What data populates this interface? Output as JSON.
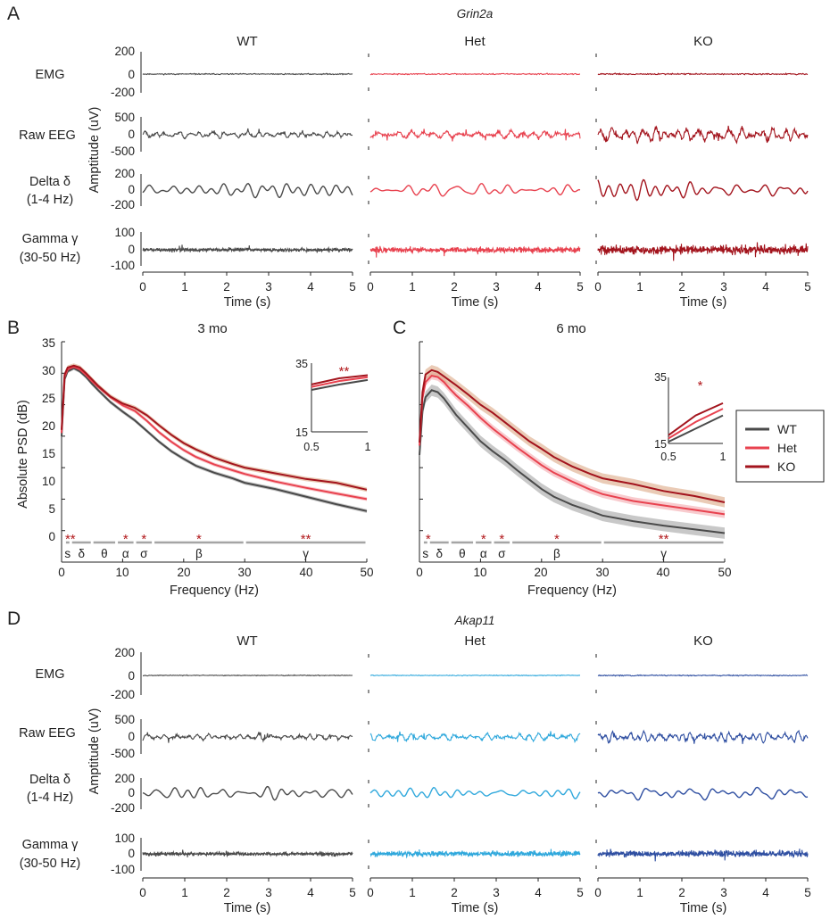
{
  "panel_labels": {
    "A": "A",
    "B": "B",
    "C": "C",
    "D": "D"
  },
  "genes": {
    "top": "Grin2a",
    "bottom": "Akap11"
  },
  "genotypes": [
    "WT",
    "Het",
    "KO"
  ],
  "row_labels": [
    {
      "l1": "EMG",
      "l2": ""
    },
    {
      "l1": "Raw EEG",
      "l2": ""
    },
    {
      "l1": "Delta δ",
      "l2": "(1-4 Hz)"
    },
    {
      "l1": "Gamma γ",
      "l2": "(30-50 Hz)"
    }
  ],
  "trace_ylabel": "Amptitude (uV)",
  "time_xlabel": "Time (s)",
  "psd_xlabel": "Frequency (Hz)",
  "psd_ylabel": "Absolute PSD (dB)",
  "colors": {
    "grin2a": {
      "WT": "#4a4a4a",
      "Het": "#e8424f",
      "KO": "#a3141d"
    },
    "akap11": {
      "WT": "#4a4a4a",
      "Het": "#2fa8dc",
      "KO": "#2e4ea1"
    },
    "psd": {
      "WT": "#4a4a4a",
      "Het": "#e8424f",
      "KO": "#a3141d"
    },
    "star": "#b2191c",
    "band_bar": "#a5a5a5"
  },
  "legend": [
    "WT",
    "Het",
    "KO"
  ],
  "chart_data": [
    {
      "id": "A",
      "type": "line",
      "title": "Grin2a",
      "columns": [
        "WT",
        "Het",
        "KO"
      ],
      "rows": [
        {
          "label": "EMG",
          "ylim": [
            -200,
            200
          ],
          "yticks": [
            200,
            0,
            -200
          ],
          "amplitude": [
            8,
            8,
            8
          ]
        },
        {
          "label": "Raw EEG",
          "ylim": [
            -500,
            500
          ],
          "yticks": [
            500,
            0,
            -500
          ],
          "amplitude": [
            180,
            190,
            260
          ]
        },
        {
          "label": "Delta δ (1-4 Hz)",
          "ylim": [
            -250,
            250
          ],
          "yticks": [
            200,
            0,
            -200
          ],
          "amplitude": [
            120,
            100,
            160
          ]
        },
        {
          "label": "Gamma γ (30-50 Hz)",
          "ylim": [
            -100,
            100
          ],
          "yticks": [
            100,
            0,
            -100
          ],
          "amplitude": [
            30,
            45,
            65
          ]
        }
      ],
      "x_range": [
        0,
        5
      ],
      "xticks": [
        0,
        1,
        2,
        3,
        4,
        5
      ],
      "xlabel": "Time (s)"
    },
    {
      "id": "B",
      "type": "line",
      "title": "3 mo",
      "xlabel": "Frequency (Hz)",
      "ylabel": "Absolute PSD (dB)",
      "xlim": [
        0,
        50
      ],
      "ylim": [
        0,
        35
      ],
      "xticks": [
        0,
        10,
        20,
        30,
        40,
        50
      ],
      "yticks": [
        0,
        5,
        10,
        15,
        20,
        25,
        30,
        35
      ],
      "x": [
        0,
        0.5,
        1,
        2,
        3,
        4,
        5,
        6,
        8,
        10,
        12,
        14,
        16,
        18,
        20,
        22,
        25,
        28,
        30,
        35,
        40,
        45,
        50
      ],
      "series": [
        {
          "name": "WT",
          "values": [
            20,
            29,
            30.3,
            30.8,
            30.3,
            29.4,
            28.3,
            27.3,
            25.4,
            23.9,
            22.5,
            20.8,
            19.1,
            17.6,
            16.4,
            15.3,
            14.2,
            13.3,
            12.6,
            11.6,
            10.4,
            9.2,
            8.1
          ],
          "band": 0.3
        },
        {
          "name": "Het",
          "values": [
            20.5,
            29.4,
            30.6,
            31,
            30.6,
            29.7,
            28.7,
            27.8,
            26.2,
            24.9,
            24,
            22.4,
            20.6,
            19.1,
            17.8,
            16.7,
            15.5,
            14.6,
            14,
            12.8,
            11.8,
            10.9,
            10
          ],
          "band": 0.3
        },
        {
          "name": "KO",
          "values": [
            21,
            29.8,
            30.9,
            31.2,
            30.9,
            30,
            29,
            28,
            26.3,
            25.2,
            24.5,
            23.3,
            21.7,
            20.2,
            18.9,
            17.9,
            16.6,
            15.6,
            15,
            14.1,
            13.2,
            12.6,
            11.5
          ],
          "band": 0.35
        }
      ],
      "bands": [
        {
          "label": "s",
          "from": 0.5,
          "to": 1.5,
          "stars": "**"
        },
        {
          "label": "δ",
          "from": 1.5,
          "to": 5,
          "stars": ""
        },
        {
          "label": "θ",
          "from": 5,
          "to": 9,
          "stars": ""
        },
        {
          "label": "α",
          "from": 9,
          "to": 12,
          "stars": "*"
        },
        {
          "label": "σ",
          "from": 12,
          "to": 15,
          "stars": "*"
        },
        {
          "label": "β",
          "from": 15,
          "to": 30,
          "stars": "*"
        },
        {
          "label": "γ",
          "from": 30,
          "to": 50,
          "stars": "**"
        }
      ],
      "inset": {
        "xlim": [
          0.5,
          1
        ],
        "ylim": [
          15,
          35
        ],
        "xticks": [
          "0.5",
          "1"
        ],
        "yticks": [
          "15",
          "35"
        ],
        "x": [
          0.5,
          0.75,
          1
        ],
        "series": [
          {
            "name": "WT",
            "values": [
              27.2,
              28.8,
              30.1
            ]
          },
          {
            "name": "Het",
            "values": [
              28.1,
              29.8,
              30.9
            ]
          },
          {
            "name": "KO",
            "values": [
              28.8,
              30.6,
              31.5
            ]
          }
        ],
        "stars": "**"
      }
    },
    {
      "id": "C",
      "type": "line",
      "title": "6 mo",
      "xlabel": "Frequency (Hz)",
      "ylabel": "",
      "xlim": [
        0,
        50
      ],
      "ylim": [
        0,
        35
      ],
      "xticks": [
        0,
        10,
        20,
        30,
        40,
        50
      ],
      "yticks": [],
      "x": [
        0,
        0.5,
        1,
        2,
        3,
        4,
        5,
        6,
        8,
        10,
        12,
        14,
        16,
        18,
        20,
        22,
        25,
        28,
        30,
        35,
        40,
        45,
        50
      ],
      "series": [
        {
          "name": "WT",
          "values": [
            17,
            24,
            26.2,
            27.3,
            27,
            26,
            24.7,
            23.4,
            21.3,
            19.2,
            17.6,
            16.2,
            14.6,
            13.1,
            11.6,
            10.4,
            9.1,
            8.1,
            7.4,
            6.5,
            5.8,
            5.2,
            4.6
          ],
          "band": 0.9
        },
        {
          "name": "Het",
          "values": [
            18.5,
            26,
            28.6,
            29.6,
            29.4,
            28.6,
            27.5,
            26.5,
            24.8,
            22.9,
            21.2,
            19.7,
            18.2,
            16.8,
            15.4,
            14.2,
            12.8,
            11.5,
            10.8,
            9.7,
            9,
            8.3,
            7.6
          ],
          "band": 0.6
        },
        {
          "name": "KO",
          "values": [
            19,
            27,
            29.8,
            30.5,
            30.2,
            29.5,
            28.8,
            28.1,
            26.6,
            25,
            23.7,
            22.2,
            20.7,
            19.2,
            18,
            16.7,
            15.2,
            14,
            13.3,
            12.4,
            11.3,
            10.5,
            9.5
          ],
          "band": 0.8
        }
      ],
      "bands": [
        {
          "label": "s",
          "from": 0.5,
          "to": 1.5,
          "stars": "*"
        },
        {
          "label": "δ",
          "from": 1.5,
          "to": 5,
          "stars": ""
        },
        {
          "label": "θ",
          "from": 5,
          "to": 9,
          "stars": ""
        },
        {
          "label": "α",
          "from": 9,
          "to": 12,
          "stars": "*"
        },
        {
          "label": "σ",
          "from": 12,
          "to": 15,
          "stars": "*"
        },
        {
          "label": "β",
          "from": 15,
          "to": 30,
          "stars": "*"
        },
        {
          "label": "γ",
          "from": 30,
          "to": 50,
          "stars": "**"
        }
      ],
      "inset": {
        "xlim": [
          0.5,
          1
        ],
        "ylim": [
          15,
          35
        ],
        "xticks": [
          "0.5",
          "1"
        ],
        "yticks": [
          "15",
          "35"
        ],
        "x": [
          0.5,
          0.75,
          1
        ],
        "series": [
          {
            "name": "WT",
            "values": [
              15.5,
              19.5,
              23.5
            ]
          },
          {
            "name": "Het",
            "values": [
              16.5,
              21.5,
              25.5
            ]
          },
          {
            "name": "KO",
            "values": [
              17.5,
              23.5,
              27.2
            ]
          }
        ],
        "stars": "*"
      }
    },
    {
      "id": "D",
      "type": "line",
      "title": "Akap11",
      "columns": [
        "WT",
        "Het",
        "KO"
      ],
      "rows": [
        {
          "label": "EMG",
          "ylim": [
            -200,
            200
          ],
          "yticks": [
            200,
            0,
            -200
          ],
          "amplitude": [
            5,
            5,
            6
          ]
        },
        {
          "label": "Raw EEG",
          "ylim": [
            -500,
            500
          ],
          "yticks": [
            500,
            0,
            -500
          ],
          "amplitude": [
            170,
            170,
            200
          ]
        },
        {
          "label": "Delta δ (1-4 Hz)",
          "ylim": [
            -250,
            250
          ],
          "yticks": [
            200,
            0,
            -200
          ],
          "amplitude": [
            110,
            90,
            110
          ]
        },
        {
          "label": "Gamma γ (30-50 Hz)",
          "ylim": [
            -100,
            100
          ],
          "yticks": [
            100,
            0,
            -100
          ],
          "amplitude": [
            25,
            30,
            45
          ]
        }
      ],
      "x_range": [
        0,
        5
      ],
      "xticks": [
        0,
        1,
        2,
        3,
        4,
        5
      ],
      "xlabel": "Time (s)"
    }
  ]
}
